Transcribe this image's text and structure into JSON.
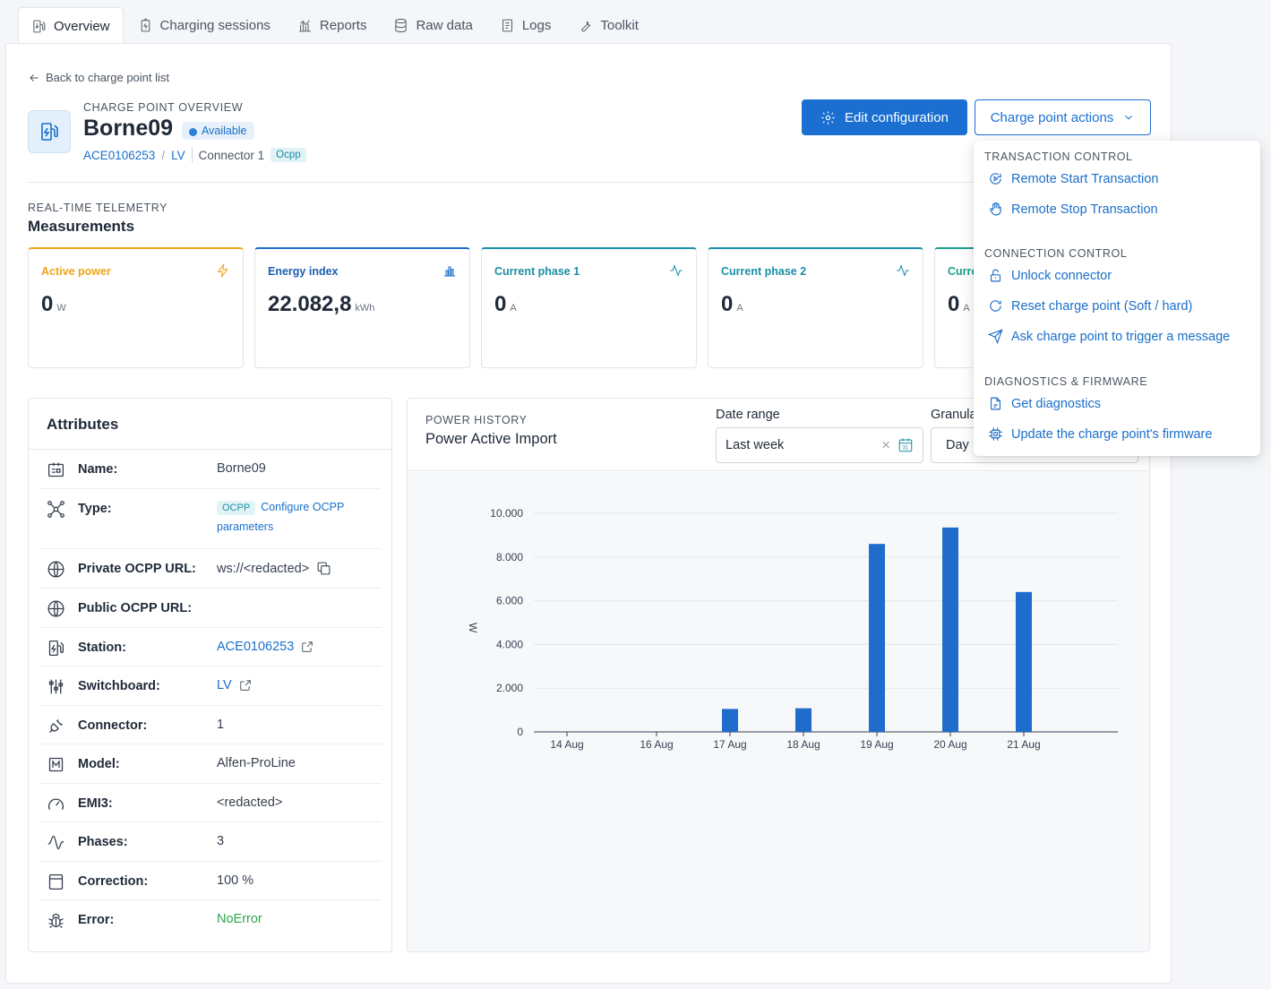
{
  "tabs": [
    {
      "label": "Overview",
      "icon": "station-icon",
      "active": true
    },
    {
      "label": "Charging sessions",
      "icon": "battery-icon"
    },
    {
      "label": "Reports",
      "icon": "chart-icon"
    },
    {
      "label": "Raw data",
      "icon": "database-icon"
    },
    {
      "label": "Logs",
      "icon": "document-icon"
    },
    {
      "label": "Toolkit",
      "icon": "wrench-icon"
    }
  ],
  "back_link": "Back to charge point list",
  "charge_point": {
    "overline": "CHARGE POINT OVERVIEW",
    "name": "Borne09",
    "status": "Available",
    "station": "ACE0106253",
    "switchboard": "LV",
    "connector": "Connector 1",
    "protocol": "Ocpp"
  },
  "buttons": {
    "edit": "Edit configuration",
    "actions": "Charge point actions"
  },
  "measurements": {
    "overline": "REAL-TIME TELEMETRY",
    "title": "Measurements",
    "cards": [
      {
        "title": "Active power",
        "value": "0",
        "unit": "W",
        "color": "#f0a41c",
        "icon": "bolt-icon"
      },
      {
        "title": "Energy index",
        "value": "22.082,8",
        "unit": "kWh",
        "color": "#1a6fc9",
        "icon": "bar-chart-icon"
      },
      {
        "title": "Current phase 1",
        "value": "0",
        "unit": "A",
        "color": "#1a8fa8",
        "icon": "wave-icon"
      },
      {
        "title": "Current phase 2",
        "value": "0",
        "unit": "A",
        "color": "#1a8fa8",
        "icon": "wave-icon"
      },
      {
        "title": "Curre",
        "value": "0",
        "unit": "A",
        "color": "#1f9d8a",
        "icon": "wave-icon"
      }
    ]
  },
  "attributes": {
    "title": "Attributes",
    "rows": [
      {
        "label": "Name:",
        "value": "Borne09",
        "icon": "id-card-icon"
      },
      {
        "label": "Type:",
        "tag": "OCPP",
        "value_line1": "Configure OCPP",
        "value_line2": "parameters",
        "icon": "network-icon"
      },
      {
        "label": "Private OCPP URL:",
        "value": "ws://<redacted>",
        "icon": "globe-icon"
      },
      {
        "label": "Public OCPP URL:",
        "value": "",
        "icon": "globe-icon"
      },
      {
        "label": "Station:",
        "value": "ACE0106253",
        "icon": "station-icon"
      },
      {
        "label": "Switchboard:",
        "value": "LV",
        "icon": "sliders-icon"
      },
      {
        "label": "Connector:",
        "value": "1",
        "icon": "plug-icon"
      },
      {
        "label": "Model:",
        "value": "Alfen-ProLine",
        "icon": "model-icon"
      },
      {
        "label": "EMI3:",
        "value": "<redacted>",
        "icon": "gauge-icon"
      },
      {
        "label": "Phases:",
        "value": "3",
        "icon": "wave-icon"
      },
      {
        "label": "Correction:",
        "value": "100 %",
        "icon": "calculator-icon"
      },
      {
        "label": "Error:",
        "value": "NoError",
        "icon": "bug-icon"
      }
    ]
  },
  "power_history": {
    "overline": "POWER HISTORY",
    "title": "Power Active Import",
    "date_range_label": "Date range",
    "date_range_value": "Last week",
    "granularity_label": "Granula",
    "granularity_value": "Day"
  },
  "chart_data": {
    "type": "bar",
    "categories": [
      "14 Aug",
      "16 Aug",
      "17 Aug",
      "18 Aug",
      "19 Aug",
      "20 Aug",
      "21 Aug"
    ],
    "values": [
      0,
      0,
      1050,
      1080,
      8600,
      9350,
      6400
    ],
    "ylabel": "W",
    "ylim": [
      0,
      10000
    ],
    "yticks": [
      "0",
      "2.000",
      "4.000",
      "6.000",
      "8.000",
      "10.000"
    ],
    "grid": true,
    "bar_color": "#1f6ccc"
  },
  "dropdown": {
    "sections": [
      {
        "title": "TRANSACTION CONTROL",
        "items": [
          {
            "label": "Remote Start Transaction",
            "icon": "play-cycle-icon"
          },
          {
            "label": "Remote Stop Transaction",
            "icon": "hand-icon"
          }
        ]
      },
      {
        "title": "CONNECTION CONTROL",
        "items": [
          {
            "label": "Unlock connector",
            "icon": "unlock-icon"
          },
          {
            "label": "Reset charge point (Soft / hard)",
            "icon": "refresh-icon"
          },
          {
            "label": "Ask charge point to trigger a message",
            "icon": "send-icon"
          }
        ]
      },
      {
        "title": "DIAGNOSTICS & FIRMWARE",
        "items": [
          {
            "label": "Get diagnostics",
            "icon": "file-icon"
          },
          {
            "label": "Update the charge point's firmware",
            "icon": "chip-icon"
          }
        ]
      }
    ]
  }
}
